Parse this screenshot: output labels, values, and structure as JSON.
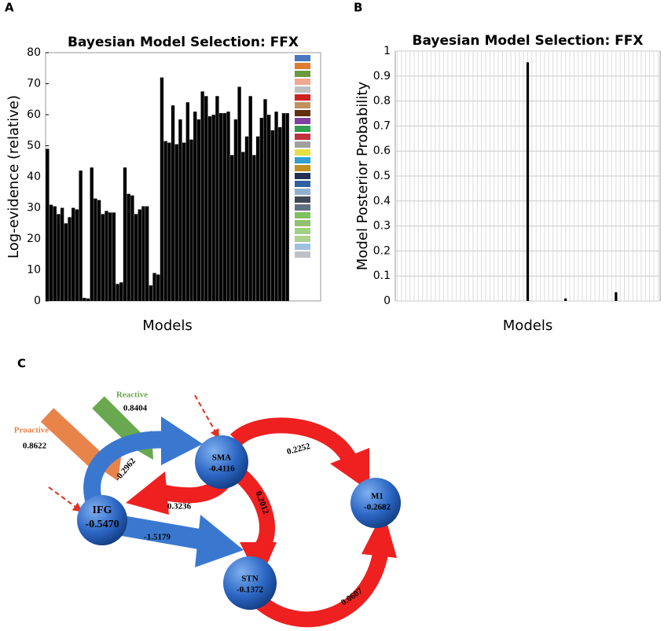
{
  "panel_labels": [
    "A",
    "B",
    "C"
  ],
  "chart_data": [
    {
      "type": "bar",
      "title": "Bayesian Model Selection: FFX",
      "xlabel": "Models",
      "ylabel": "Log-evidence (relative)",
      "color": "#000000",
      "grid": false,
      "ylim": [
        0,
        80
      ],
      "yticks": [
        0,
        10,
        20,
        30,
        40,
        50,
        60,
        70,
        80
      ],
      "categories": [
        null,
        null,
        null,
        null,
        null,
        null,
        null,
        null,
        null,
        null,
        null,
        null,
        null,
        null,
        null,
        null,
        null,
        null,
        null,
        null,
        null,
        null,
        null,
        null,
        null,
        null,
        null,
        null,
        null,
        null,
        null,
        null,
        null,
        null,
        null,
        null,
        null,
        null,
        null,
        null,
        null,
        null,
        null,
        null,
        null,
        null,
        null,
        null,
        null,
        null,
        null,
        null,
        null,
        null,
        null,
        null,
        null,
        null,
        null,
        null,
        null,
        null,
        null,
        null,
        null,
        null
      ],
      "values": [
        49,
        31,
        30.5,
        28,
        30,
        25,
        27,
        30,
        29.5,
        42,
        1,
        0.8,
        43,
        33,
        32.5,
        28,
        29,
        28.5,
        28.5,
        5.5,
        6,
        43,
        34.5,
        34,
        28,
        29.5,
        30.5,
        30.5,
        5,
        9,
        8.5,
        72,
        51.5,
        51,
        63,
        50.5,
        58.5,
        51,
        64,
        52,
        61,
        58.5,
        67.5,
        66,
        59.5,
        60,
        66,
        60.5,
        60.5,
        61,
        47,
        58.5,
        69,
        48,
        53,
        66,
        47,
        53,
        59,
        65,
        60,
        55,
        61,
        56,
        60.5,
        60.5
      ]
    },
    {
      "type": "bar",
      "title": "Bayesian Model Selection: FFX",
      "xlabel": "Models",
      "ylabel": "Model Posterior Probability",
      "color": "#000000",
      "grid": true,
      "ylim": [
        0,
        1
      ],
      "yticks": [
        0,
        0.1,
        0.2,
        0.3,
        0.4,
        0.5,
        0.6,
        0.7,
        0.8,
        0.9,
        1
      ],
      "categories": [
        null,
        null,
        null,
        null,
        null,
        null,
        null,
        null,
        null,
        null,
        null,
        null,
        null,
        null,
        null,
        null,
        null,
        null,
        null,
        null,
        null,
        null,
        null,
        null,
        null,
        null,
        null,
        null,
        null,
        null,
        null,
        null,
        null,
        null,
        null,
        null,
        null,
        null,
        null,
        null,
        null,
        null,
        null,
        null,
        null,
        null,
        null,
        null,
        null,
        null,
        null,
        null,
        null,
        null,
        null,
        null,
        null,
        null,
        null,
        null,
        null,
        null,
        null
      ],
      "values": [
        0,
        0,
        0,
        0,
        0,
        0,
        0,
        0,
        0,
        0,
        0,
        0,
        0,
        0,
        0,
        0,
        0,
        0,
        0,
        0,
        0,
        0,
        0,
        0,
        0,
        0,
        0,
        0,
        0,
        0,
        0,
        0.955,
        0,
        0,
        0,
        0,
        0,
        0,
        0,
        0,
        0.01,
        0,
        0,
        0,
        0,
        0,
        0,
        0,
        0,
        0,
        0,
        0,
        0.035,
        0,
        0,
        0,
        0,
        0,
        0,
        0,
        0,
        0,
        0
      ]
    }
  ],
  "diagram": {
    "nodes": [
      {
        "label": "IFG",
        "value": "-0.5470"
      },
      {
        "label": "SMA",
        "value": "-0.4116"
      },
      {
        "label": "STN",
        "value": "-0.1372"
      },
      {
        "label": "M1",
        "value": "-0.2682"
      }
    ],
    "edges": [
      "-0.2962",
      "0.3236",
      "-1.5179",
      "0.2012",
      "0.2252",
      "0.0607"
    ],
    "inputs": [
      {
        "label": "Proactive",
        "value": "0.8622"
      },
      {
        "label": "Reactive",
        "value": "0.8404"
      }
    ]
  }
}
